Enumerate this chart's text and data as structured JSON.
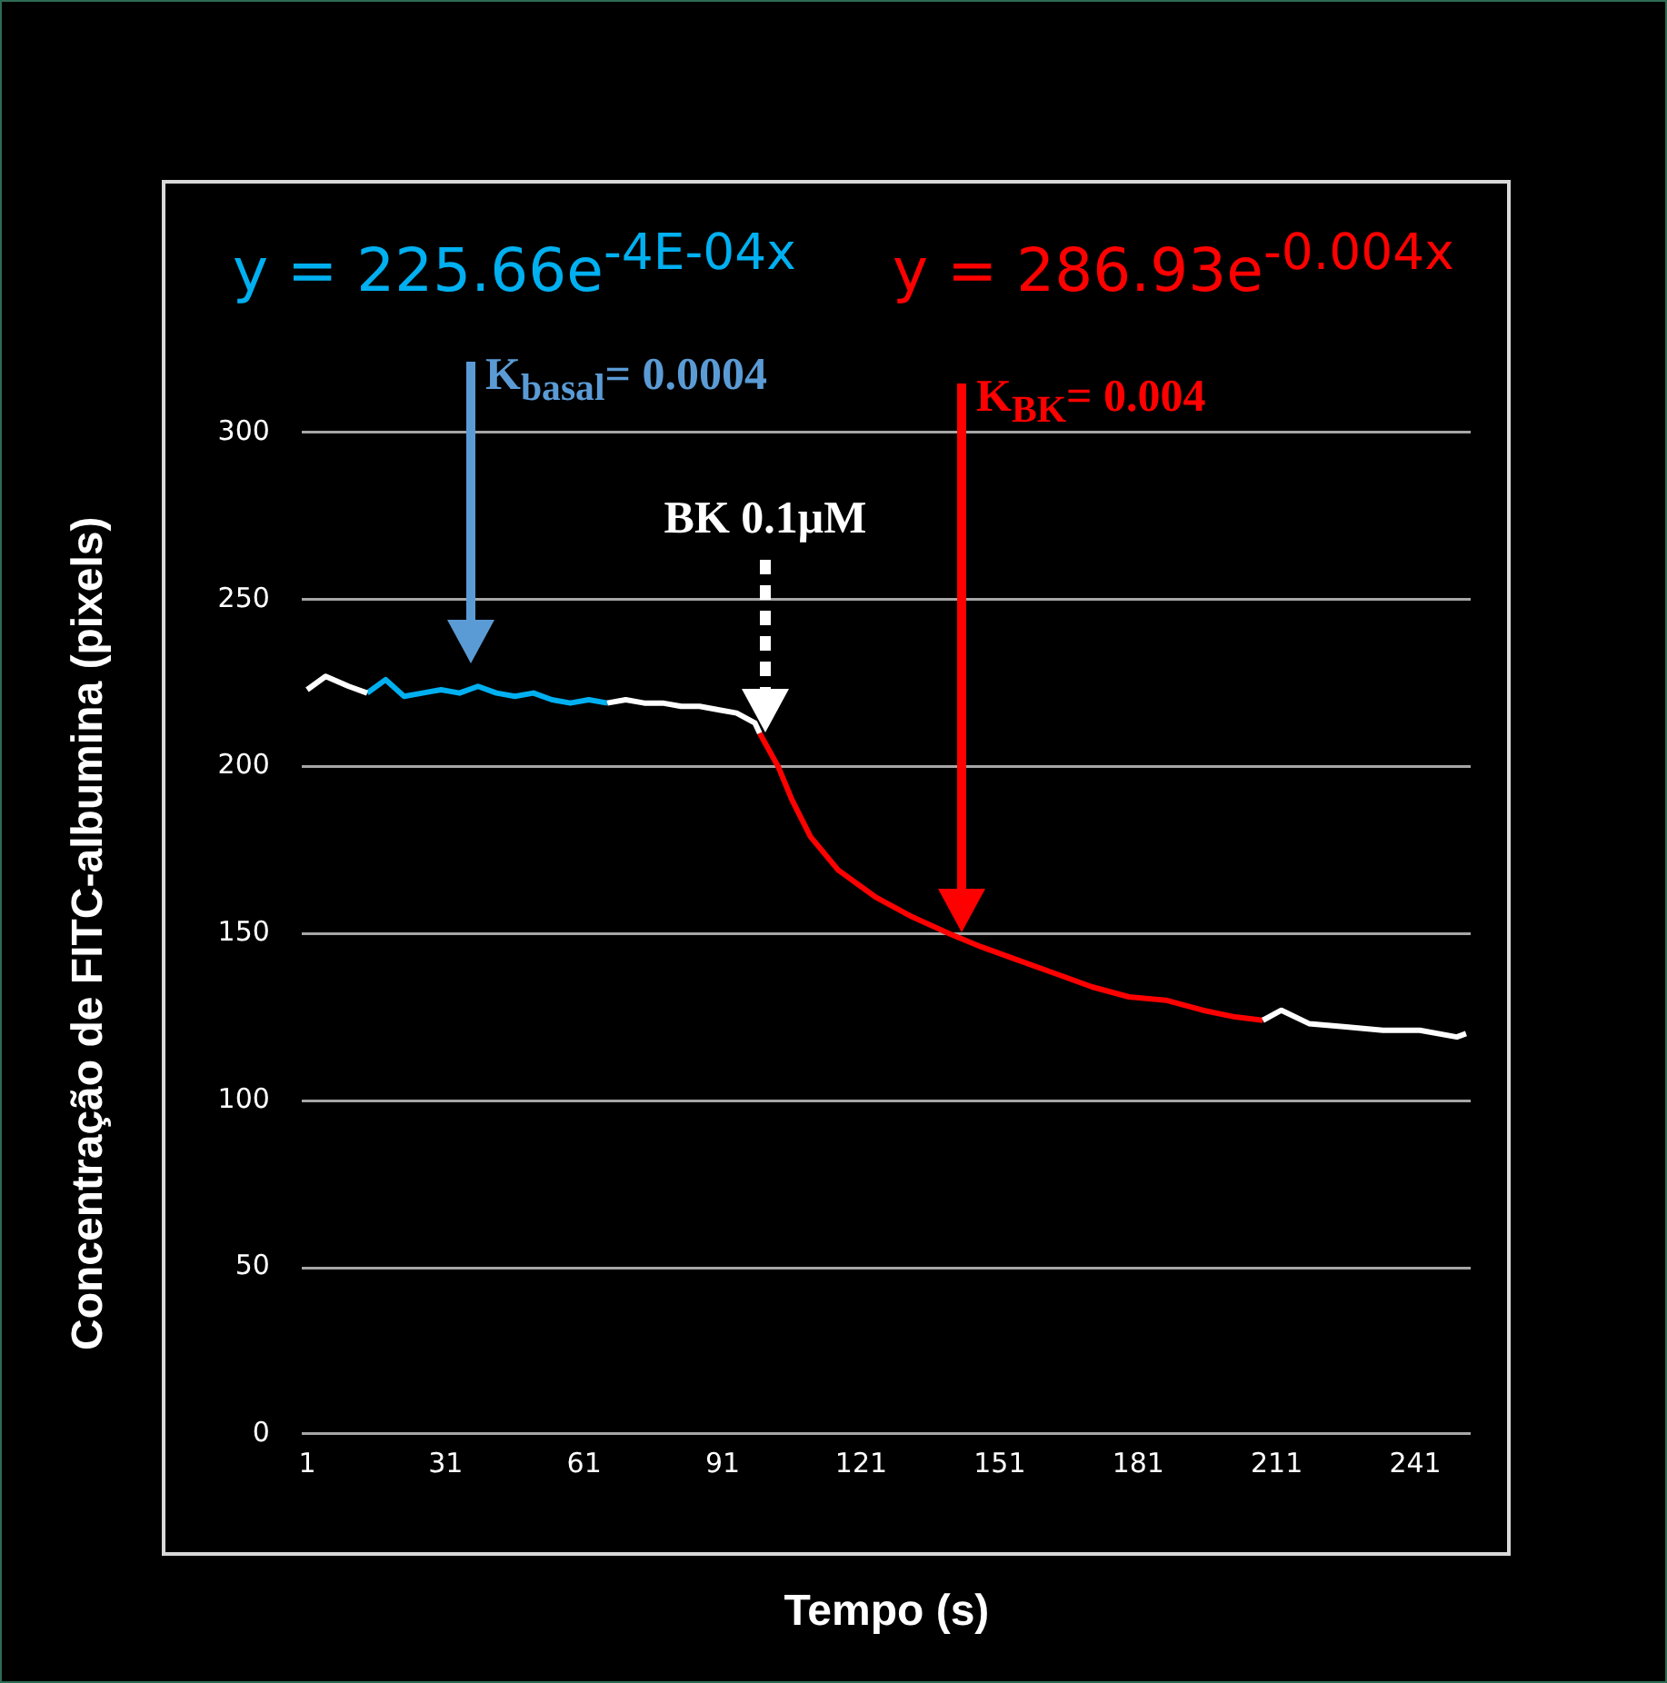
{
  "chart_data": {
    "type": "line",
    "xlabel": "Tempo (s)",
    "ylabel": "Concentração de FITC-albumina (pixels)",
    "xlim": [
      0,
      253
    ],
    "xticks": [
      1,
      31,
      61,
      91,
      121,
      151,
      181,
      211,
      241
    ],
    "ylim": [
      0,
      300
    ],
    "yticks": [
      0,
      50,
      100,
      150,
      200,
      250,
      300
    ],
    "grid": "y",
    "legend": false,
    "marker": "none",
    "line_style": "solid",
    "series": [
      {
        "color": "#ffffff",
        "x": [
          1,
          5,
          10,
          14,
          15,
          66,
          70,
          74,
          78,
          82,
          86,
          90,
          94,
          98,
          99,
          100,
          208,
          212,
          218,
          226,
          234,
          242,
          250,
          252
        ],
        "values": [
          223,
          227,
          224,
          222,
          null,
          219,
          220,
          219,
          219,
          218,
          218,
          217,
          216,
          213,
          210,
          null,
          124,
          127,
          123,
          122,
          121,
          121,
          119,
          120
        ]
      },
      {
        "color": "#00b0f0",
        "x": [
          14,
          18,
          22,
          26,
          30,
          34,
          38,
          42,
          46,
          50,
          54,
          58,
          62,
          66
        ],
        "values": [
          222,
          226,
          221,
          222,
          223,
          222,
          224,
          222,
          221,
          222,
          220,
          219,
          220,
          219
        ]
      },
      {
        "color": "#ff0000",
        "x": [
          99,
          103,
          106,
          110,
          116,
          124,
          132,
          140,
          147,
          155,
          163,
          171,
          179,
          187,
          195,
          202,
          208
        ],
        "values": [
          210,
          200,
          190,
          179,
          169,
          161,
          155,
          150,
          146,
          142,
          138,
          134,
          131,
          130,
          127,
          125,
          124
        ]
      }
    ],
    "annotations": [
      "y = 225.66e$^{-4E-04x}$",
      "y = 286.93e$^{-0.004x}$",
      "K$_{basal}$= 0.0004",
      "BK 0.1μM",
      "K$_{BK}$= 0.004"
    ]
  }
}
